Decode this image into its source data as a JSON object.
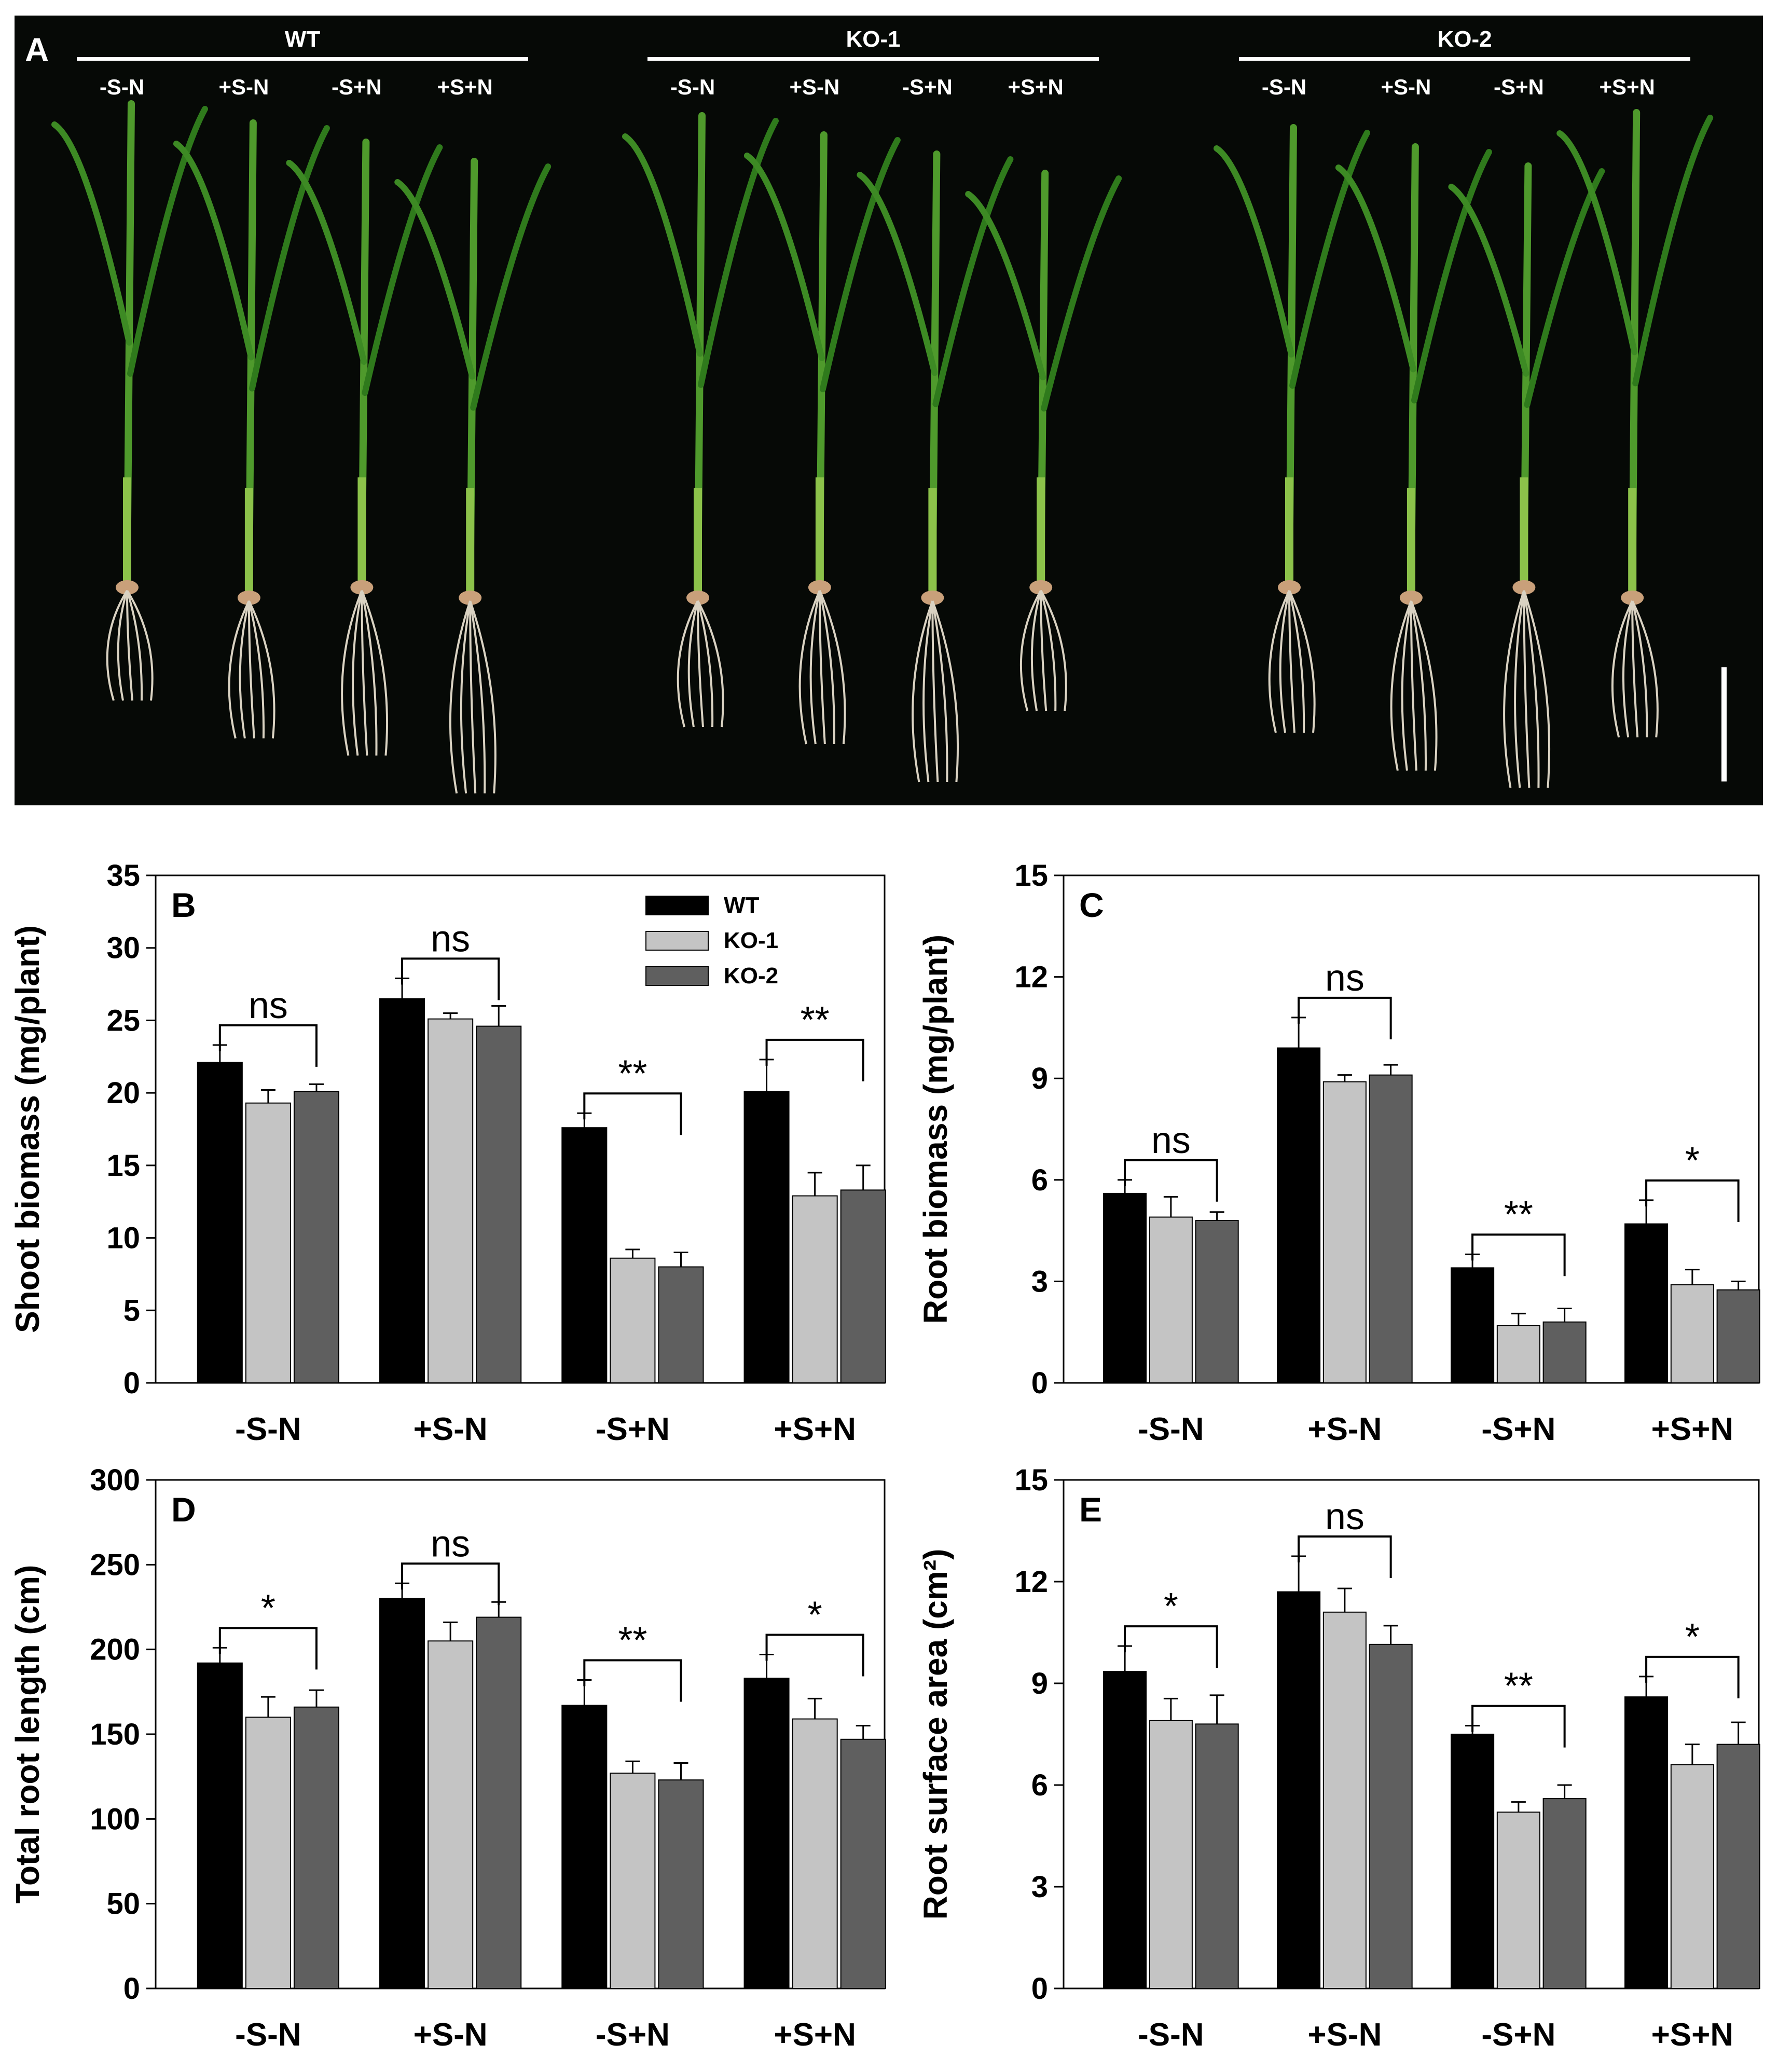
{
  "photo": {
    "panel_label": "A",
    "groups": [
      {
        "name": "WT",
        "treatments": [
          "-S-N",
          "+S-N",
          "-S+N",
          "+S+N"
        ]
      },
      {
        "name": "KO-1",
        "treatments": [
          "-S-N",
          "+S-N",
          "-S+N",
          "+S+N"
        ]
      },
      {
        "name": "KO-2",
        "treatments": [
          "-S-N",
          "+S-N",
          "-S+N",
          "+S+N"
        ]
      }
    ]
  },
  "colors": {
    "WT": "#000000",
    "KO-1": "#c4c4c4",
    "KO-2": "#5f5f5f"
  },
  "chart_data": [
    {
      "panel": "B",
      "type": "bar",
      "ylabel": "Shoot biomass (mg/plant)",
      "ylim": [
        0,
        35
      ],
      "yticks": [
        "0",
        "5",
        "10",
        "15",
        "20",
        "25",
        "30",
        "35"
      ],
      "categories": [
        "-S-N",
        "+S-N",
        "-S+N",
        "+S+N"
      ],
      "series": [
        {
          "name": "WT",
          "values": [
            22.1,
            26.5,
            17.6,
            20.1
          ],
          "errors": [
            1.2,
            1.4,
            1.0,
            2.2
          ]
        },
        {
          "name": "KO-1",
          "values": [
            19.3,
            25.1,
            8.6,
            12.9
          ],
          "errors": [
            0.9,
            0.4,
            0.6,
            1.6
          ]
        },
        {
          "name": "KO-2",
          "values": [
            20.1,
            24.6,
            8.0,
            13.3
          ],
          "errors": [
            0.5,
            1.4,
            1.0,
            1.7
          ]
        }
      ],
      "significance": [
        "ns",
        "ns",
        "**",
        "**"
      ],
      "legend": [
        "WT",
        "KO-1",
        "KO-2"
      ],
      "legend_position": "top-right"
    },
    {
      "panel": "C",
      "type": "bar",
      "ylabel": "Root biomass (mg/plant)",
      "ylim": [
        0,
        15
      ],
      "yticks": [
        "0",
        "3",
        "6",
        "9",
        "12",
        "15"
      ],
      "categories": [
        "-S-N",
        "+S-N",
        "-S+N",
        "+S+N"
      ],
      "series": [
        {
          "name": "WT",
          "values": [
            5.6,
            9.9,
            3.4,
            4.7
          ],
          "errors": [
            0.4,
            0.9,
            0.4,
            0.7
          ]
        },
        {
          "name": "KO-1",
          "values": [
            4.9,
            8.9,
            1.7,
            2.9
          ],
          "errors": [
            0.6,
            0.2,
            0.35,
            0.45
          ]
        },
        {
          "name": "KO-2",
          "values": [
            4.8,
            9.1,
            1.8,
            2.75
          ],
          "errors": [
            0.25,
            0.3,
            0.4,
            0.25
          ]
        }
      ],
      "significance": [
        "ns",
        "ns",
        "**",
        "*"
      ]
    },
    {
      "panel": "D",
      "type": "bar",
      "ylabel": "Total root length (cm)",
      "ylim": [
        0,
        300
      ],
      "yticks": [
        "0",
        "50",
        "100",
        "150",
        "200",
        "250",
        "300"
      ],
      "categories": [
        "-S-N",
        "+S-N",
        "-S+N",
        "+S+N"
      ],
      "series": [
        {
          "name": "WT",
          "values": [
            192,
            230,
            167,
            183
          ],
          "errors": [
            9,
            9,
            15,
            14
          ]
        },
        {
          "name": "KO-1",
          "values": [
            160,
            205,
            127,
            159
          ],
          "errors": [
            12,
            11,
            7,
            12
          ]
        },
        {
          "name": "KO-2",
          "values": [
            166,
            219,
            123,
            147
          ],
          "errors": [
            10,
            9,
            10,
            8
          ]
        }
      ],
      "significance": [
        "*",
        "ns",
        "**",
        "*"
      ]
    },
    {
      "panel": "E",
      "type": "bar",
      "ylabel": "Root surface area (cm²)",
      "ylim": [
        0,
        15
      ],
      "yticks": [
        "0",
        "3",
        "6",
        "9",
        "12",
        "15"
      ],
      "categories": [
        "-S-N",
        "+S-N",
        "-S+N",
        "+S+N"
      ],
      "series": [
        {
          "name": "WT",
          "values": [
            9.35,
            11.7,
            7.5,
            8.6
          ],
          "errors": [
            0.75,
            1.05,
            0.25,
            0.6
          ]
        },
        {
          "name": "KO-1",
          "values": [
            7.9,
            11.1,
            5.2,
            6.6
          ],
          "errors": [
            0.65,
            0.7,
            0.3,
            0.6
          ]
        },
        {
          "name": "KO-2",
          "values": [
            7.8,
            10.15,
            5.6,
            7.2
          ],
          "errors": [
            0.85,
            0.55,
            0.4,
            0.65
          ]
        }
      ],
      "significance": [
        "*",
        "ns",
        "**",
        "*"
      ]
    }
  ]
}
